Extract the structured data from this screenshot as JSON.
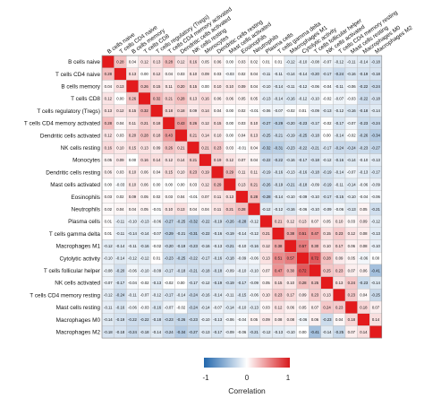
{
  "chart_data": {
    "type": "heatmap",
    "title": "",
    "labels": [
      "B cells naive",
      "T cells CD4 naive",
      "B cells memory",
      "T cells CD8",
      "T cells regulatory (Tregs)",
      "T cells CD4 memory activated",
      "Dendritic cells activated",
      "NK cells resting",
      "Monocytes",
      "Dendritic cells resting",
      "Mast cells activated",
      "Eosinophils",
      "Neutrophils",
      "Plasma cells",
      "T cells gamma delta",
      "Macrophages M1",
      "Cytolytic activity",
      "T cells follicular helper",
      "NK cells activated",
      "T cells CD4 memory resting",
      "Mast cells resting",
      "Macrophages M0",
      "Macrophages M2"
    ],
    "matrix": [
      [
        null,
        0.28,
        0.04,
        0.12,
        0.13,
        0.28,
        0.12,
        0.16,
        0.05,
        0.06,
        0.0,
        0.03,
        0.02,
        0.01,
        0.01,
        -0.12,
        -0.1,
        -0.08,
        -0.07,
        -0.12,
        -0.11,
        -0.14,
        -0.18
      ],
      [
        0.28,
        null,
        0.13,
        0.0,
        0.12,
        0.04,
        0.03,
        0.1,
        0.09,
        0.03,
        -0.03,
        0.02,
        0.04,
        -0.11,
        -0.11,
        -0.14,
        -0.14,
        -0.2,
        -0.17,
        -0.24,
        -0.16,
        -0.19,
        -0.18
      ],
      [
        0.04,
        0.13,
        null,
        0.26,
        0.15,
        0.11,
        0.2,
        0.15,
        0.0,
        0.1,
        0.1,
        0.09,
        0.04,
        -0.1,
        -0.14,
        -0.11,
        -0.12,
        -0.06,
        -0.04,
        -0.11,
        -0.06,
        -0.22,
        -0.24
      ],
      [
        0.12,
        0.0,
        0.26,
        null,
        0.32,
        0.21,
        0.28,
        0.13,
        0.16,
        0.06,
        0.06,
        0.05,
        0.05,
        -0.13,
        -0.14,
        -0.16,
        -0.12,
        -0.1,
        -0.02,
        -0.07,
        -0.03,
        -0.22,
        -0.18
      ],
      [
        0.13,
        0.12,
        0.15,
        0.32,
        null,
        0.18,
        0.18,
        0.09,
        0.14,
        0.04,
        0.0,
        0.02,
        -0.01,
        -0.06,
        -0.07,
        -0.02,
        0.01,
        -0.09,
        -0.13,
        -0.12,
        -0.16,
        -0.18,
        -0.14
      ],
      [
        0.28,
        0.04,
        0.11,
        0.21,
        0.18,
        null,
        0.43,
        0.26,
        0.12,
        0.15,
        0.0,
        0.03,
        0.1,
        -0.27,
        -0.29,
        -0.2,
        -0.23,
        -0.17,
        -0.02,
        -0.17,
        -0.07,
        -0.23,
        -0.24
      ],
      [
        0.12,
        0.03,
        0.2,
        0.28,
        0.18,
        0.43,
        null,
        0.21,
        0.14,
        0.1,
        0.0,
        0.04,
        0.13,
        -0.25,
        -0.21,
        -0.19,
        -0.25,
        -0.18,
        0.0,
        -0.14,
        -0.02,
        -0.26,
        -0.34
      ],
      [
        0.16,
        0.1,
        0.15,
        0.13,
        0.09,
        0.26,
        0.21,
        null,
        0.21,
        0.23,
        0.03,
        -0.01,
        0.04,
        -0.32,
        -0.31,
        -0.23,
        -0.22,
        -0.21,
        -0.17,
        -0.24,
        -0.24,
        -0.23,
        -0.27
      ],
      [
        0.05,
        0.09,
        0.0,
        0.16,
        0.14,
        0.12,
        0.14,
        0.21,
        null,
        0.19,
        0.12,
        0.07,
        0.04,
        -0.22,
        -0.22,
        -0.16,
        -0.17,
        -0.18,
        -0.12,
        -0.16,
        -0.14,
        -0.1,
        -0.13
      ],
      [
        0.06,
        0.03,
        0.1,
        0.06,
        0.04,
        0.15,
        0.1,
        0.23,
        0.19,
        null,
        0.29,
        0.11,
        0.11,
        -0.19,
        -0.16,
        -0.13,
        -0.16,
        -0.18,
        -0.19,
        -0.14,
        -0.07,
        -0.13,
        -0.17
      ],
      [
        0.0,
        -0.03,
        0.1,
        0.06,
        0.0,
        0.0,
        0.0,
        0.03,
        0.12,
        0.29,
        null,
        0.13,
        0.21,
        -0.26,
        -0.19,
        -0.21,
        -0.18,
        -0.09,
        -0.19,
        -0.11,
        -0.14,
        -0.06,
        -0.09
      ],
      [
        0.03,
        0.02,
        0.09,
        0.05,
        0.02,
        0.03,
        0.04,
        -0.01,
        0.07,
        0.11,
        0.13,
        null,
        0.28,
        -0.28,
        -0.14,
        -0.1,
        -0.09,
        -0.1,
        -0.17,
        -0.15,
        -0.1,
        -0.04,
        -0.06
      ],
      [
        0.02,
        0.04,
        0.04,
        0.05,
        -0.01,
        0.1,
        0.13,
        0.04,
        0.04,
        0.11,
        0.21,
        0.28,
        null,
        -0.12,
        -0.12,
        -0.16,
        -0.06,
        -0.1,
        -0.09,
        -0.06,
        -0.13,
        0.05,
        -0.21
      ],
      [
        0.01,
        -0.11,
        -0.1,
        -0.13,
        -0.06,
        -0.27,
        -0.25,
        -0.32,
        -0.22,
        -0.19,
        -0.26,
        -0.28,
        -0.12,
        null,
        0.21,
        0.12,
        0.13,
        0.07,
        0.05,
        0.1,
        0.03,
        0.09,
        -0.12
      ],
      [
        0.01,
        -0.11,
        -0.14,
        -0.14,
        -0.07,
        -0.29,
        -0.21,
        -0.31,
        -0.22,
        -0.16,
        -0.19,
        -0.14,
        -0.12,
        0.21,
        null,
        0.38,
        0.51,
        0.47,
        0.15,
        0.23,
        0.12,
        0.08,
        -0.13
      ],
      [
        -0.12,
        -0.14,
        -0.11,
        -0.16,
        -0.02,
        -0.2,
        -0.19,
        -0.23,
        -0.16,
        -0.13,
        -0.21,
        -0.1,
        -0.16,
        0.12,
        0.38,
        null,
        0.57,
        0.3,
        0.1,
        0.17,
        0.06,
        0.08,
        -0.1
      ],
      [
        -0.1,
        -0.14,
        -0.12,
        -0.12,
        0.01,
        -0.23,
        -0.25,
        -0.22,
        -0.17,
        -0.16,
        -0.18,
        -0.09,
        -0.06,
        0.13,
        0.51,
        0.57,
        null,
        0.72,
        0.28,
        0.09,
        0.05,
        -0.06,
        0.0
      ],
      [
        -0.08,
        -0.2,
        -0.06,
        -0.1,
        -0.09,
        -0.17,
        -0.18,
        -0.21,
        -0.18,
        -0.18,
        -0.09,
        -0.1,
        -0.1,
        0.07,
        0.47,
        0.3,
        0.72,
        null,
        0.25,
        0.23,
        0.07,
        0.06,
        -0.41
      ],
      [
        -0.07,
        -0.17,
        -0.04,
        -0.02,
        -0.13,
        -0.02,
        0.0,
        -0.17,
        -0.12,
        -0.19,
        -0.19,
        -0.17,
        -0.09,
        0.05,
        0.15,
        0.1,
        0.28,
        0.25,
        null,
        0.13,
        0.24,
        -0.23,
        -0.14
      ],
      [
        -0.12,
        -0.24,
        -0.11,
        -0.07,
        -0.12,
        -0.17,
        -0.14,
        -0.24,
        -0.16,
        -0.14,
        -0.11,
        -0.15,
        -0.06,
        0.1,
        0.23,
        0.17,
        0.09,
        0.23,
        0.13,
        null,
        0.23,
        0.04,
        -0.25
      ],
      [
        -0.11,
        -0.16,
        -0.06,
        -0.03,
        -0.16,
        -0.07,
        -0.02,
        -0.24,
        -0.14,
        -0.07,
        -0.14,
        -0.1,
        -0.13,
        0.03,
        0.12,
        0.06,
        0.05,
        0.07,
        0.24,
        0.23,
        null,
        0.18,
        0.07
      ],
      [
        -0.14,
        -0.19,
        -0.22,
        -0.22,
        -0.18,
        -0.23,
        -0.26,
        -0.23,
        -0.1,
        -0.13,
        -0.06,
        -0.04,
        0.05,
        0.09,
        0.08,
        0.08,
        -0.06,
        0.06,
        -0.23,
        0.04,
        0.18,
        null,
        0.14
      ],
      [
        -0.18,
        -0.18,
        -0.24,
        -0.18,
        -0.14,
        -0.24,
        -0.34,
        -0.27,
        -0.13,
        -0.17,
        -0.09,
        -0.06,
        -0.21,
        -0.12,
        -0.13,
        -0.1,
        0.0,
        -0.41,
        -0.14,
        -0.25,
        0.07,
        0.14,
        null
      ]
    ],
    "color_scale": {
      "min": -1,
      "mid": 0,
      "max": 1,
      "low_color": "#2166ac",
      "mid_color": "#ffffff",
      "high_color": "#d7191c",
      "diagonal_color": "#e31a1c"
    },
    "legend": {
      "title": "Correlation",
      "ticks": [
        "-1",
        "0",
        "1"
      ],
      "placement": "bottom"
    }
  }
}
